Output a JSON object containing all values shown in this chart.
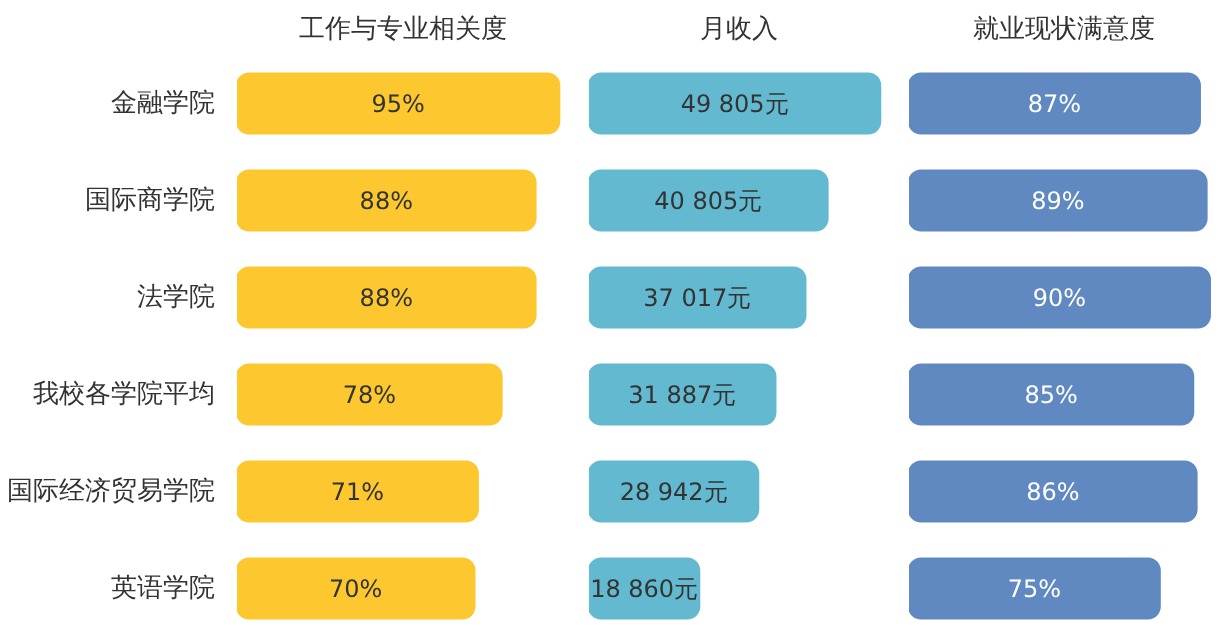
{
  "chart_data": [
    {
      "type": "bar",
      "orientation": "horizontal",
      "title": "工作与专业相关度",
      "categories": [
        "金融学院",
        "国际商学院",
        "法学院",
        "我校各学院平均",
        "国际经济贸易学院",
        "英语学院"
      ],
      "values": [
        95,
        88,
        88,
        78,
        71,
        70
      ],
      "color": "#fdc82f",
      "value_labels": [
        "95%",
        "88%",
        "88%",
        "78%",
        "71%",
        "70%"
      ]
    },
    {
      "type": "bar",
      "orientation": "horizontal",
      "title": "月收入",
      "categories": [
        null,
        null,
        null,
        null,
        null,
        null
      ],
      "values": [
        49805,
        40805,
        37017,
        31887,
        28942,
        18860
      ],
      "color": "#63b9cf",
      "value_labels": [
        "49 805元",
        "40 805元",
        "37 017元",
        "31 887元",
        "28 942元",
        "18 860元"
      ]
    },
    {
      "type": "bar",
      "orientation": "horizontal",
      "title": "就业现状满意度",
      "categories": [
        null,
        null,
        null,
        null,
        null,
        null
      ],
      "values": [
        87,
        89,
        90,
        85,
        86,
        75
      ],
      "color": "#5f89c0",
      "value_labels": [
        "87%",
        "89%",
        "90%",
        "85%",
        "86%",
        "75%"
      ]
    }
  ]
}
